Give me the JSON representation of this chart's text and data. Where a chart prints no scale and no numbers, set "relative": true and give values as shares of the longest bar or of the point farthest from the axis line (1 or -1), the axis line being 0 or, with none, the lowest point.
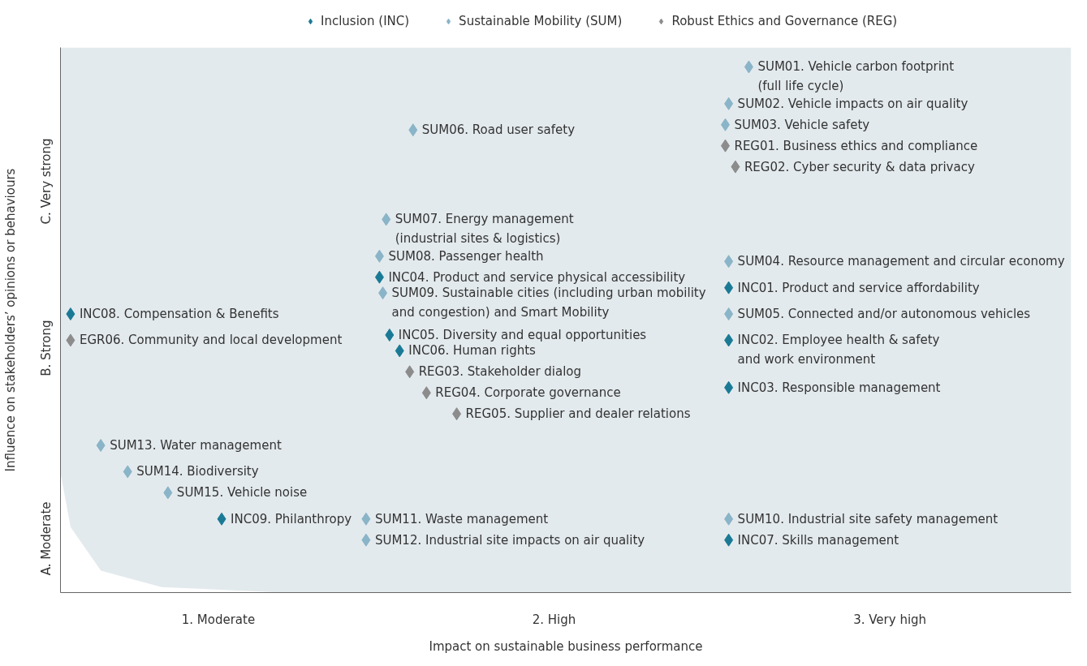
{
  "chart_data": {
    "type": "scatter",
    "marker": "diamond",
    "legend": "top",
    "grid": false,
    "relative": true,
    "xlabel": "Impact on sustainable business performance",
    "ylabel": "Influence on stakeholders’ opinions or behaviours",
    "xlim": [
      0.53,
      3.54
    ],
    "xticks": [
      {
        "value": 1,
        "label": "1. Moderate"
      },
      {
        "value": 2,
        "label": "2. High"
      },
      {
        "value": 3,
        "label": "3. Very high"
      }
    ],
    "series": [
      {
        "name": "Inclusion (INC)",
        "color": "#1a7a96",
        "x": [
          0.56,
          1.01,
          1.48,
          1.51,
          1.54,
          2.52,
          2.52,
          2.52,
          2.52
        ],
        "values": [
          0.53,
          0.14,
          0.6,
          0.49,
          0.46,
          0.58,
          0.48,
          0.39,
          0.1
        ]
      },
      {
        "name": "Sustainable Mobility (SUM)",
        "color": "#8ab4c8",
        "x": [
          2.58,
          2.52,
          2.51,
          1.58,
          1.5,
          1.48,
          1.49,
          2.52,
          2.52,
          0.65,
          0.73,
          0.85,
          1.44,
          1.44,
          2.52
        ],
        "values": [
          1,
          0.93,
          0.89,
          0.88,
          0.71,
          0.64,
          0.57,
          0.63,
          0.53,
          0.28,
          0.23,
          0.19,
          0.14,
          0.1,
          0.14
        ]
      },
      {
        "name": "Robust Ethics and Governance (REG)",
        "color": "#8c8c8c",
        "x": [
          2.51,
          2.54,
          1.57,
          1.62,
          1.71,
          0.56
        ],
        "values": [
          0.85,
          0.81,
          0.42,
          0.38,
          0.34,
          0.48
        ]
      }
    ],
    "annotations": [
      "C. Very strong",
      "B. Strong",
      "A. Moderate",
      {
        "text": "INC08. Compensation & Benefits",
        "x": 0.56,
        "y": 0.53
      },
      {
        "text": "INC09. Philanthropy",
        "x": 1.01,
        "y": 0.14
      },
      {
        "text": "INC04. Product and service physical accessibility",
        "x": 1.48,
        "y": 0.6
      },
      {
        "text": "INC05. Diversity and equal opportunities",
        "x": 1.51,
        "y": 0.49
      },
      {
        "text": "INC06. Human rights",
        "x": 1.54,
        "y": 0.46
      },
      {
        "text": "INC01. Product and service affordability",
        "x": 2.52,
        "y": 0.58
      },
      {
        "text": "INC02. Employee health & safety\nand work environment",
        "x": 2.52,
        "y": 0.48
      },
      {
        "text": "INC03. Responsible management",
        "x": 2.52,
        "y": 0.39
      },
      {
        "text": "INC07. Skills management",
        "x": 2.52,
        "y": 0.1
      },
      {
        "text": "SUM01. Vehicle carbon footprint\n(full life cycle)",
        "x": 2.58,
        "y": 1
      },
      {
        "text": "SUM02. Vehicle impacts on air quality",
        "x": 2.52,
        "y": 0.93
      },
      {
        "text": "SUM03. Vehicle safety",
        "x": 2.51,
        "y": 0.89
      },
      {
        "text": "SUM06. Road user safety",
        "x": 1.58,
        "y": 0.88
      },
      {
        "text": "SUM07. Energy management\n(industrial sites & logistics)",
        "x": 1.5,
        "y": 0.71
      },
      {
        "text": "SUM08. Passenger health",
        "x": 1.48,
        "y": 0.64
      },
      {
        "text": "SUM09. Sustainable cities (including urban mobility\nand congestion) and Smart Mobility",
        "x": 1.49,
        "y": 0.57
      },
      {
        "text": "SUM04. Resource management and circular economy",
        "x": 2.52,
        "y": 0.63
      },
      {
        "text": "SUM05. Connected and/or autonomous vehicles",
        "x": 2.52,
        "y": 0.53
      },
      {
        "text": "SUM13. Water management",
        "x": 0.65,
        "y": 0.28
      },
      {
        "text": "SUM14. Biodiversity",
        "x": 0.73,
        "y": 0.23
      },
      {
        "text": "SUM15. Vehicle noise",
        "x": 0.85,
        "y": 0.19
      },
      {
        "text": "SUM11. Waste management",
        "x": 1.44,
        "y": 0.14
      },
      {
        "text": "SUM12. Industrial site impacts on air quality",
        "x": 1.44,
        "y": 0.1
      },
      {
        "text": "SUM10. Industrial site safety management",
        "x": 2.52,
        "y": 0.14
      },
      {
        "text": "REG01. Business ethics and compliance",
        "x": 2.51,
        "y": 0.85
      },
      {
        "text": "REG02. Cyber security & data privacy",
        "x": 2.54,
        "y": 0.81
      },
      {
        "text": "REG03. Stakeholder dialog",
        "x": 1.57,
        "y": 0.42
      },
      {
        "text": "REG04. Corporate governance",
        "x": 1.62,
        "y": 0.38
      },
      {
        "text": "REG05. Supplier and dealer relations",
        "x": 1.71,
        "y": 0.34
      },
      {
        "text": "EGR06. Community and local development",
        "x": 0.56,
        "y": 0.48
      }
    ]
  }
}
